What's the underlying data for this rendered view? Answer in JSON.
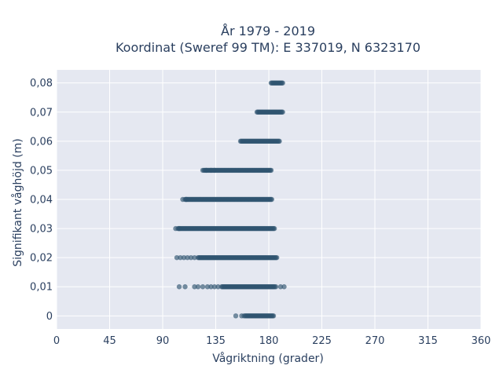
{
  "chart_data": {
    "type": "scatter",
    "title_line1": "År 1979 - 2019",
    "title_line2": "Koordinat (Sweref 99 TM): E 337019, N 6323170",
    "xlabel": "Vågriktning (grader)",
    "ylabel": "Signifikant våghöjd (m)",
    "xlim": [
      0,
      360
    ],
    "ylim": [
      -0.0045,
      0.0845
    ],
    "x_ticks": [
      0,
      45,
      90,
      135,
      180,
      225,
      270,
      315,
      360
    ],
    "x_tick_labels": [
      "0",
      "45",
      "90",
      "135",
      "180",
      "225",
      "270",
      "315",
      "360"
    ],
    "y_ticks": [
      0,
      0.01,
      0.02,
      0.03,
      0.04,
      0.05,
      0.06,
      0.07,
      0.08
    ],
    "y_tick_labels": [
      "0",
      "0,01",
      "0,02",
      "0,03",
      "0,04",
      "0,05",
      "0,06",
      "0,07",
      "0,08"
    ],
    "grid": true,
    "marker_color": "#2f5470",
    "background_color": "#e5e8f1",
    "rows": [
      {
        "y": 0.08,
        "x_min": 182,
        "x_max": 192,
        "sparse": []
      },
      {
        "y": 0.07,
        "x_min": 170,
        "x_max": 192,
        "sparse": []
      },
      {
        "y": 0.06,
        "x_min": 156,
        "x_max": 189,
        "sparse": []
      },
      {
        "y": 0.05,
        "x_min": 125,
        "x_max": 182,
        "sparse": [
          124,
          127,
          131,
          134
        ]
      },
      {
        "y": 0.04,
        "x_min": 109,
        "x_max": 183,
        "sparse": [
          107,
          110
        ]
      },
      {
        "y": 0.03,
        "x_min": 103,
        "x_max": 185,
        "sparse": [
          101,
          104
        ]
      },
      {
        "y": 0.02,
        "x_min": 120,
        "x_max": 187,
        "sparse": [
          102,
          105,
          108,
          111,
          114,
          117
        ]
      },
      {
        "y": 0.01,
        "x_min": 140,
        "x_max": 185,
        "sparse": [
          104,
          109,
          117,
          120,
          124,
          128,
          131,
          134,
          137,
          186,
          190,
          193
        ]
      },
      {
        "y": 0.0,
        "x_min": 160,
        "x_max": 184,
        "sparse": [
          152,
          157,
          159
        ]
      }
    ]
  }
}
